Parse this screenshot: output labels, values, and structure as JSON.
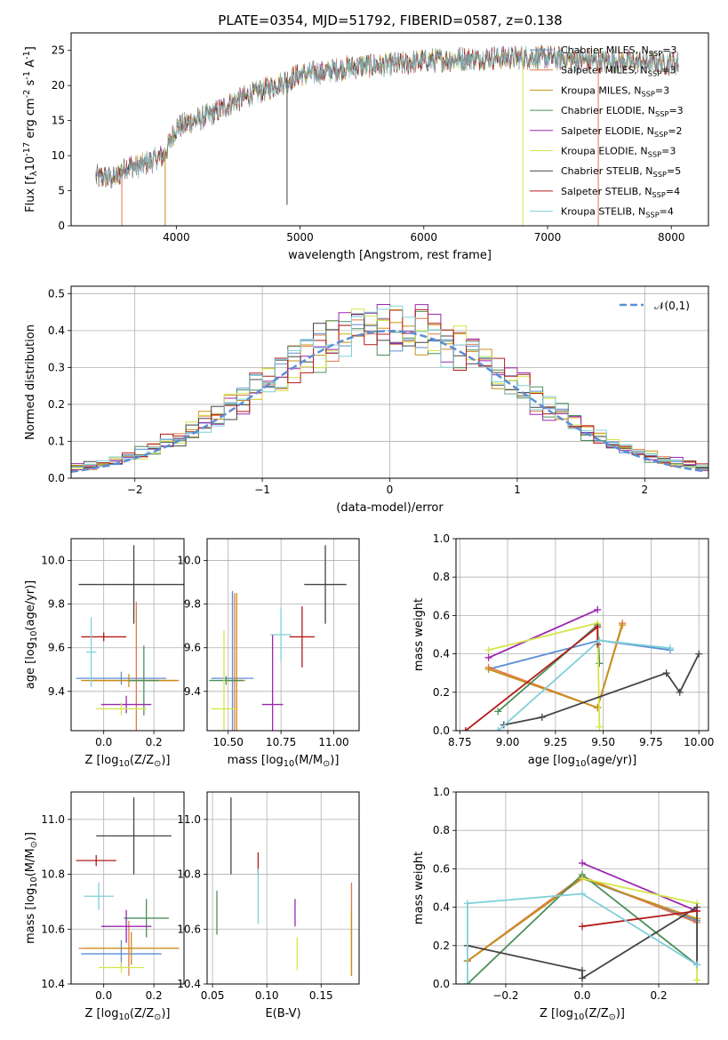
{
  "figure": {
    "title": "PLATE=0354, MJD=51792, FIBERID=0587, z=0.138",
    "series": [
      {
        "name": "Chabrier MILES, N$_{SSP}$=3",
        "color": "#5b8ed6"
      },
      {
        "name": "Salpeter MILES, N$_{SSP}$=3",
        "color": "#e07a4a"
      },
      {
        "name": "Kroupa MILES, N$_{SSP}$=3",
        "color": "#c89018"
      },
      {
        "name": "Chabrier ELODIE, N$_{SSP}$=3",
        "color": "#4d8f5b"
      },
      {
        "name": "Salpeter ELODIE, N$_{SSP}$=2",
        "color": "#9b27b0"
      },
      {
        "name": "Kroupa ELODIE, N$_{SSP}$=3",
        "color": "#d4e64a"
      },
      {
        "name": "Chabrier STELIB, N$_{SSP}$=5",
        "color": "#444444"
      },
      {
        "name": "Salpeter STELIB, N$_{SSP}$=4",
        "color": "#b31b1b"
      },
      {
        "name": "Kroupa STELIB, N$_{SSP}$=4",
        "color": "#7fd0d8"
      }
    ],
    "extra_colors": {
      "pink": "#e879c0",
      "gauss": "#5b8ed6"
    }
  },
  "chart_data": [
    {
      "type": "line",
      "id": "spectrum",
      "xlabel": "wavelength [Angstrom, rest frame]",
      "ylabel": "Flux [f$_\\lambda$10$^{-17}$ erg cm$^{-2}$ s$^{-1}$ A$^{-1}$]",
      "xlim": [
        3150,
        8300
      ],
      "ylim": [
        0,
        27.5
      ],
      "xticks": [
        4000,
        5000,
        6000,
        7000,
        8000
      ],
      "yticks": [
        0,
        5,
        10,
        15,
        20,
        25
      ],
      "grid": false,
      "legend": "upper right",
      "continuum": {
        "x": [
          3350,
          3500,
          3600,
          3700,
          3900,
          4000,
          4300,
          4500,
          4800,
          5000,
          5200,
          5500,
          5800,
          6000,
          6300,
          6600,
          7000,
          7400,
          7800,
          8050
        ],
        "y": [
          7,
          6.8,
          8.5,
          8.5,
          10,
          14,
          16,
          18,
          20,
          21.5,
          22,
          22.8,
          23,
          23.5,
          23.8,
          24,
          24,
          23.5,
          23.3,
          23.2
        ]
      },
      "spikes": [
        {
          "x": 3560,
          "y": 0,
          "color": "#e07a4a"
        },
        {
          "x": 3910,
          "y": 0,
          "color": "#c89018"
        },
        {
          "x": 4895,
          "y": 3,
          "color": "#444444"
        },
        {
          "x": 6800,
          "y": 0,
          "color": "#d4e64a"
        },
        {
          "x": 7410,
          "y": 0,
          "color": "#e07a4a"
        }
      ]
    },
    {
      "type": "area",
      "id": "residuals",
      "xlabel": "(data-model)/error",
      "ylabel": "Normed distribution",
      "xlim": [
        -2.5,
        2.5
      ],
      "ylim": [
        0,
        0.52
      ],
      "xticks": [
        -2,
        -1,
        0,
        1,
        2
      ],
      "yticks": [
        0.0,
        0.1,
        0.2,
        0.3,
        0.4,
        0.5
      ],
      "grid": true,
      "legend": "upper right",
      "gaussian_label": "$\\mathcal{N}(0,1)$",
      "bin_width": 0.1
    },
    {
      "type": "scatter",
      "id": "age-vs-Z",
      "xlabel": "Z [log$_{10}$(Z/Z$_\\odot$)]",
      "ylabel": "age  [log$_{10}$(age/yr)]",
      "xlim": [
        -0.13,
        0.32
      ],
      "ylim": [
        9.22,
        10.1
      ],
      "xticks": [
        0.0,
        0.2
      ],
      "yticks": [
        9.4,
        9.6,
        9.8,
        10.0
      ],
      "grid": true,
      "errorbars": [
        {
          "s": 0,
          "x": 0.07,
          "xerr": 0.18,
          "y": 9.46,
          "yerr": 0.03
        },
        {
          "s": 1,
          "x": 0.13,
          "xerr": 0.17,
          "y": 9.45,
          "yerr": 0.36
        },
        {
          "s": 2,
          "x": 0.1,
          "xerr": 0.19,
          "y": 9.45,
          "yerr": 0.03
        },
        {
          "s": 3,
          "x": 0.16,
          "xerr": 0.06,
          "y": 9.45,
          "yerr": 0.16
        },
        {
          "s": 4,
          "x": 0.09,
          "xerr": 0.1,
          "y": 9.34,
          "yerr": 0.04
        },
        {
          "s": 5,
          "x": 0.07,
          "xerr": 0.1,
          "y": 9.32,
          "yerr": 0.03
        },
        {
          "s": 6,
          "x": 0.12,
          "xerr": 0.22,
          "y": 9.89,
          "yerr": 0.18
        },
        {
          "s": 7,
          "x": 0.0,
          "xerr": 0.09,
          "y": 9.65,
          "yerr": 0.02
        },
        {
          "s": 8,
          "x": -0.05,
          "xerr": 0.02,
          "y": 9.58,
          "yerr": 0.16
        }
      ]
    },
    {
      "type": "scatter",
      "id": "age-vs-mass",
      "xlabel": "mass [log$_{10}$(M/M$_\\odot$)]",
      "ylabel": "",
      "xlim": [
        10.4,
        11.12
      ],
      "ylim": [
        9.22,
        10.1
      ],
      "xticks": [
        10.5,
        10.75,
        11.0
      ],
      "yticks": [
        9.4,
        9.6,
        9.8,
        10.0
      ],
      "grid": true,
      "errorbars": [
        {
          "s": 0,
          "x": 10.52,
          "xerr": 0.1,
          "y": 9.46,
          "yerr": 0.4
        },
        {
          "s": 1,
          "x": 10.53,
          "xerr": 0.01,
          "y": 9.45,
          "yerr": 0.4
        },
        {
          "s": 2,
          "x": 10.54,
          "xerr": 0.04,
          "y": 9.45,
          "yerr": 0.4
        },
        {
          "s": 3,
          "x": 10.49,
          "xerr": 0.08,
          "y": 9.45,
          "yerr": 0.02
        },
        {
          "s": 4,
          "x": 10.71,
          "xerr": 0.05,
          "y": 9.34,
          "yerr": 0.32
        },
        {
          "s": 5,
          "x": 10.48,
          "xerr": 0.06,
          "y": 9.32,
          "yerr": 0.36
        },
        {
          "s": 6,
          "x": 10.96,
          "xerr": 0.1,
          "y": 9.89,
          "yerr": 0.18
        },
        {
          "s": 7,
          "x": 10.85,
          "xerr": 0.06,
          "y": 9.65,
          "yerr": 0.14
        },
        {
          "s": 8,
          "x": 10.75,
          "xerr": 0.05,
          "y": 9.66,
          "yerr": 0.12
        }
      ]
    },
    {
      "type": "line",
      "id": "weight-vs-age",
      "xlabel": "age  [log$_{10}$(age/yr)]",
      "ylabel": "mass weight",
      "xlim": [
        8.73,
        10.05
      ],
      "ylim": [
        0,
        1
      ],
      "xticks": [
        8.75,
        9.0,
        9.25,
        9.5,
        9.75,
        10.0
      ],
      "yticks": [
        0.0,
        0.2,
        0.4,
        0.6,
        0.8,
        1.0
      ],
      "grid": true,
      "series": [
        {
          "s": 0,
          "x": [
            8.9,
            9.48,
            9.85
          ],
          "y": [
            0.32,
            0.47,
            0.42
          ]
        },
        {
          "s": 1,
          "x": [
            8.9,
            9.47,
            9.6
          ],
          "y": [
            0.33,
            0.12,
            0.56
          ]
        },
        {
          "s": 2,
          "x": [
            8.9,
            9.47,
            9.6
          ],
          "y": [
            0.32,
            0.12,
            0.55
          ]
        },
        {
          "s": 3,
          "x": [
            8.95,
            9.47,
            9.48
          ],
          "y": [
            0.1,
            0.55,
            0.35
          ]
        },
        {
          "s": 4,
          "x": [
            8.9,
            9.47
          ],
          "y": [
            0.38,
            0.63
          ]
        },
        {
          "s": 5,
          "x": [
            8.9,
            9.47,
            9.48
          ],
          "y": [
            0.42,
            0.56,
            0.02
          ]
        },
        {
          "s": 6,
          "x": [
            8.98,
            9.18,
            9.83,
            9.9,
            10.0
          ],
          "y": [
            0.03,
            0.07,
            0.3,
            0.2,
            0.4
          ]
        },
        {
          "s": 7,
          "x": [
            8.78,
            9.47,
            9.47
          ],
          "y": [
            0.0,
            0.54,
            0.45
          ]
        },
        {
          "s": 8,
          "x": [
            8.95,
            9.48,
            9.85
          ],
          "y": [
            0.0,
            0.47,
            0.43
          ]
        }
      ]
    },
    {
      "type": "scatter",
      "id": "mass-vs-Z",
      "xlabel": "Z [log$_{10}$(Z/Z$_\\odot$)]",
      "ylabel": "mass [log$_{10}$(M/M$_\\odot$)]",
      "xlim": [
        -0.13,
        0.32
      ],
      "ylim": [
        10.4,
        11.1
      ],
      "xticks": [
        0.0,
        0.2
      ],
      "yticks": [
        10.4,
        10.6,
        10.8,
        11.0
      ],
      "grid": true,
      "errorbars": [
        {
          "s": 0,
          "x": 0.07,
          "xerr": 0.16,
          "y": 10.51,
          "yerr": 0.05
        },
        {
          "s": 1,
          "x": 0.1,
          "xerr": 0.2,
          "y": 10.53,
          "yerr": 0.1
        },
        {
          "s": 2,
          "x": 0.11,
          "xerr": 0.19,
          "y": 10.53,
          "yerr": 0.06
        },
        {
          "s": 3,
          "x": 0.17,
          "xerr": 0.09,
          "y": 10.64,
          "yerr": 0.07
        },
        {
          "s": 4,
          "x": 0.09,
          "xerr": 0.1,
          "y": 10.61,
          "yerr": 0.06
        },
        {
          "s": 5,
          "x": 0.07,
          "xerr": 0.09,
          "y": 10.46,
          "yerr": 0.02
        },
        {
          "s": 6,
          "x": 0.12,
          "xerr": 0.15,
          "y": 10.94,
          "yerr": 0.14
        },
        {
          "s": 7,
          "x": -0.03,
          "xerr": 0.08,
          "y": 10.85,
          "yerr": 0.02
        },
        {
          "s": 8,
          "x": -0.02,
          "xerr": 0.06,
          "y": 10.72,
          "yerr": 0.05
        }
      ]
    },
    {
      "type": "scatter",
      "id": "mass-vs-ebv",
      "xlabel": "E(B-V)",
      "ylabel": "",
      "xlim": [
        0.045,
        0.185
      ],
      "ylim": [
        10.4,
        11.1
      ],
      "xticks": [
        0.05,
        0.1,
        0.15
      ],
      "yticks": [
        10.4,
        10.6,
        10.8,
        11.0
      ],
      "grid": true,
      "errorbars": [
        {
          "s": 3,
          "x": 0.054,
          "xerr": 0,
          "y": 10.66,
          "yerr": 0.08
        },
        {
          "s": 6,
          "x": 0.067,
          "xerr": 0,
          "y": 10.94,
          "yerr": 0.14
        },
        {
          "s": 7,
          "x": 0.092,
          "xerr": 0,
          "y": 10.84,
          "yerr": 0.04
        },
        {
          "s": 8,
          "x": 0.092,
          "xerr": 0,
          "y": 10.72,
          "yerr": 0.1
        },
        {
          "s": 4,
          "x": 0.126,
          "xerr": 0,
          "y": 10.66,
          "yerr": 0.05
        },
        {
          "s": 5,
          "x": 0.128,
          "xerr": 0,
          "y": 10.51,
          "yerr": 0.06
        },
        {
          "s": 1,
          "x": 0.178,
          "xerr": 0,
          "y": 10.6,
          "yerr": 0.17
        },
        {
          "s": 2,
          "x": 0.178,
          "xerr": 0,
          "y": 10.55,
          "yerr": 0.12
        }
      ]
    },
    {
      "type": "line",
      "id": "weight-vs-Z",
      "xlabel": "Z [log$_{10}$(Z/Z$_\\odot$)]",
      "ylabel": "mass weight",
      "xlim": [
        -0.33,
        0.33
      ],
      "ylim": [
        0,
        1
      ],
      "xticks": [
        -0.2,
        0.0,
        0.2
      ],
      "yticks": [
        0.0,
        0.2,
        0.4,
        0.6,
        0.8,
        1.0
      ],
      "grid": true,
      "series": [
        {
          "s": 0,
          "x": [
            -0.3,
            0.0,
            0.3
          ],
          "y": [
            0.12,
            0.55,
            0.33
          ]
        },
        {
          "s": 1,
          "x": [
            -0.3,
            0.0,
            0.3
          ],
          "y": [
            0.12,
            0.56,
            0.32
          ]
        },
        {
          "s": 2,
          "x": [
            -0.3,
            0.0,
            0.3
          ],
          "y": [
            0.12,
            0.55,
            0.34
          ]
        },
        {
          "s": 3,
          "x": [
            -0.3,
            0.0,
            0.3
          ],
          "y": [
            0.0,
            0.57,
            0.1
          ]
        },
        {
          "s": 4,
          "x": [
            0.0,
            0.3
          ],
          "y": [
            0.63,
            0.38
          ]
        },
        {
          "s": 5,
          "x": [
            0.0,
            0.3,
            0.3
          ],
          "y": [
            0.55,
            0.42,
            0.02
          ]
        },
        {
          "s": 6,
          "x": [
            -0.3,
            0.0,
            0.0,
            0.3,
            0.3
          ],
          "y": [
            0.2,
            0.07,
            0.03,
            0.4,
            0.1
          ]
        },
        {
          "s": 7,
          "x": [
            0.0,
            0.3
          ],
          "y": [
            0.3,
            0.38
          ]
        },
        {
          "s": 8,
          "x": [
            -0.3,
            -0.3,
            0.0,
            0.3
          ],
          "y": [
            0.0,
            0.42,
            0.47,
            0.1
          ]
        }
      ]
    }
  ]
}
